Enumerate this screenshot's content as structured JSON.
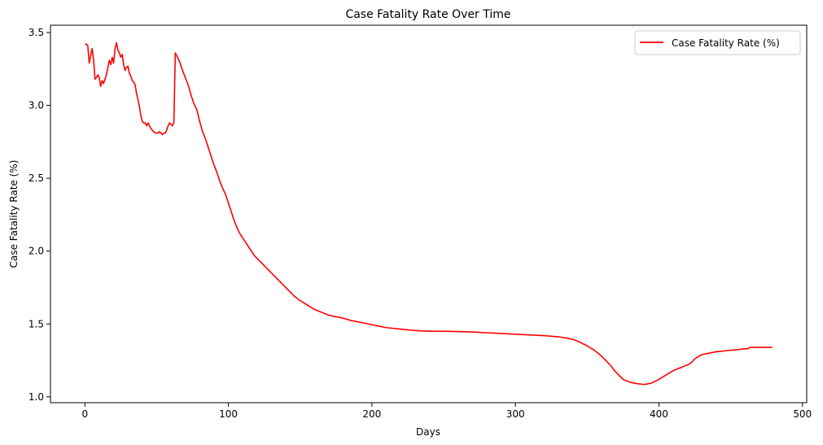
{
  "chart_data": {
    "type": "line",
    "title": "Case Fatality Rate Over Time",
    "xlabel": "Days",
    "ylabel": "Case Fatality Rate (%)",
    "xlim": [
      -24,
      503
    ],
    "ylim": [
      0.96,
      3.55
    ],
    "xticks": [
      0,
      100,
      200,
      300,
      400,
      500
    ],
    "yticks": [
      1.0,
      1.5,
      2.0,
      2.5,
      3.0,
      3.5
    ],
    "xtick_labels": [
      "0",
      "100",
      "200",
      "300",
      "400",
      "500"
    ],
    "ytick_labels": [
      "1.0",
      "1.5",
      "2.0",
      "2.5",
      "3.0",
      "3.5"
    ],
    "grid": false,
    "legend": {
      "position": "top-right"
    },
    "series": [
      {
        "name": "Case Fatality Rate (%)",
        "color": "#ff0000",
        "x": [
          0,
          1,
          2,
          3,
          4,
          5,
          6,
          7,
          8,
          9,
          10,
          11,
          12,
          13,
          14,
          15,
          16,
          17,
          18,
          19,
          20,
          21,
          22,
          23,
          24,
          25,
          26,
          27,
          28,
          29,
          30,
          31,
          32,
          33,
          34,
          35,
          36,
          37,
          38,
          39,
          40,
          41,
          42,
          43,
          44,
          45,
          46,
          47,
          48,
          49,
          50,
          51,
          52,
          53,
          54,
          55,
          56,
          57,
          58,
          59,
          60,
          61,
          62,
          63,
          64,
          66,
          68,
          70,
          72,
          74,
          76,
          78,
          80,
          82,
          84,
          86,
          88,
          90,
          92,
          94,
          96,
          98,
          100,
          102,
          104,
          106,
          108,
          110,
          112,
          114,
          116,
          118,
          120,
          122,
          124,
          126,
          128,
          130,
          132,
          134,
          136,
          138,
          140,
          143,
          146,
          150,
          155,
          160,
          165,
          170,
          175,
          180,
          185,
          190,
          195,
          200,
          205,
          210,
          215,
          220,
          225,
          230,
          240,
          250,
          260,
          270,
          280,
          290,
          300,
          310,
          320,
          330,
          335,
          340,
          345,
          350,
          355,
          360,
          365,
          370,
          375,
          380,
          385,
          390,
          395,
          400,
          405,
          410,
          415,
          420,
          422,
          425,
          428,
          430,
          435,
          440,
          445,
          450,
          453,
          455,
          460,
          462,
          463,
          465,
          470,
          475,
          479
        ],
        "y": [
          3.42,
          3.42,
          3.41,
          3.29,
          3.34,
          3.39,
          3.32,
          3.18,
          3.19,
          3.21,
          3.19,
          3.13,
          3.17,
          3.15,
          3.18,
          3.21,
          3.26,
          3.31,
          3.28,
          3.33,
          3.29,
          3.39,
          3.43,
          3.38,
          3.36,
          3.33,
          3.35,
          3.28,
          3.24,
          3.26,
          3.27,
          3.22,
          3.2,
          3.17,
          3.16,
          3.14,
          3.08,
          3.04,
          2.99,
          2.93,
          2.89,
          2.88,
          2.88,
          2.86,
          2.88,
          2.86,
          2.84,
          2.83,
          2.82,
          2.81,
          2.81,
          2.81,
          2.82,
          2.81,
          2.8,
          2.81,
          2.81,
          2.83,
          2.86,
          2.88,
          2.87,
          2.86,
          2.88,
          3.36,
          3.34,
          3.3,
          3.24,
          3.19,
          3.14,
          3.07,
          3.01,
          2.97,
          2.89,
          2.82,
          2.77,
          2.71,
          2.65,
          2.59,
          2.54,
          2.48,
          2.43,
          2.39,
          2.33,
          2.27,
          2.21,
          2.16,
          2.12,
          2.09,
          2.06,
          2.03,
          2.0,
          1.97,
          1.95,
          1.93,
          1.91,
          1.89,
          1.87,
          1.85,
          1.83,
          1.81,
          1.79,
          1.77,
          1.75,
          1.72,
          1.69,
          1.66,
          1.63,
          1.6,
          1.58,
          1.56,
          1.55,
          1.54,
          1.525,
          1.515,
          1.505,
          1.495,
          1.485,
          1.475,
          1.47,
          1.465,
          1.46,
          1.455,
          1.45,
          1.45,
          1.448,
          1.445,
          1.44,
          1.435,
          1.43,
          1.425,
          1.42,
          1.412,
          1.405,
          1.395,
          1.375,
          1.35,
          1.32,
          1.28,
          1.23,
          1.17,
          1.12,
          1.1,
          1.09,
          1.085,
          1.095,
          1.12,
          1.15,
          1.18,
          1.2,
          1.22,
          1.23,
          1.26,
          1.28,
          1.29,
          1.3,
          1.31,
          1.315,
          1.32,
          1.322,
          1.325,
          1.33,
          1.33,
          1.338,
          1.34,
          1.34,
          1.34,
          1.34
        ]
      }
    ]
  }
}
